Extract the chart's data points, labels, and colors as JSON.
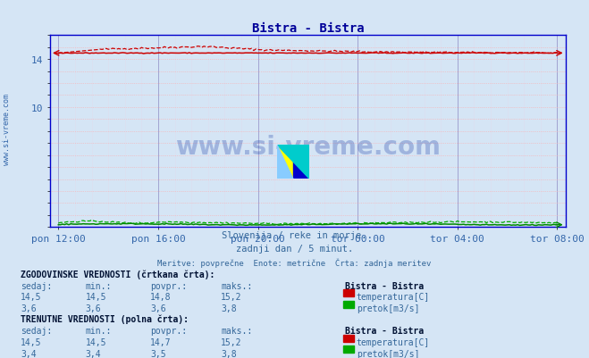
{
  "title": "Bistra - Bistra",
  "title_color": "#000099",
  "bg_color": "#d5e5f5",
  "plot_bg_color": "#d5e5f5",
  "grid_color_v": "#9999cc",
  "grid_color_h": "#ffaaaa",
  "grid_minor_color": "#ddddee",
  "x_tick_labels": [
    "pon 12:00",
    "pon 16:00",
    "pon 20:00",
    "tor 00:00",
    "tor 04:00",
    "tor 08:00"
  ],
  "x_tick_positions": [
    0,
    48,
    96,
    144,
    192,
    240
  ],
  "x_min": -4,
  "x_max": 244,
  "y_min": 0,
  "y_max": 16,
  "y_ticks_labeled": [
    10,
    14
  ],
  "temp_color": "#cc0000",
  "flow_color": "#00aa00",
  "flow_color_dark": "#008800",
  "watermark_text": "www.si-vreme.com",
  "watermark_color": "#2244aa",
  "watermark_alpha": 0.3,
  "sidebar_text": "www.si-vreme.com",
  "sidebar_color": "#3366aa",
  "subtitle1": "Slovenija / reke in morje.",
  "subtitle2": "zadnji dan / 5 minut.",
  "subtitle3": "Meritve: povprečne  Enote: metrične  Črta: zadnja meritev",
  "subtitle_color": "#336699",
  "table_title1": "ZGODOVINSKE VREDNOSTI (črtkana črta):",
  "table_title2": "TRENUTNE VREDNOSTI (polna črta):",
  "hist_temp_sedaj": "14,5",
  "hist_temp_min": "14,5",
  "hist_temp_povpr": "14,8",
  "hist_temp_maks": "15,2",
  "hist_flow_sedaj": "3,6",
  "hist_flow_min": "3,6",
  "hist_flow_povpr": "3,6",
  "hist_flow_maks": "3,8",
  "curr_temp_sedaj": "14,5",
  "curr_temp_min": "14,5",
  "curr_temp_povpr": "14,7",
  "curr_temp_maks": "15,2",
  "curr_flow_sedaj": "3,4",
  "curr_flow_min": "3,4",
  "curr_flow_povpr": "3,5",
  "curr_flow_maks": "3,8",
  "n_points": 241,
  "spine_color": "#0000cc",
  "tick_color": "#3366aa",
  "tick_fontsize": 8
}
